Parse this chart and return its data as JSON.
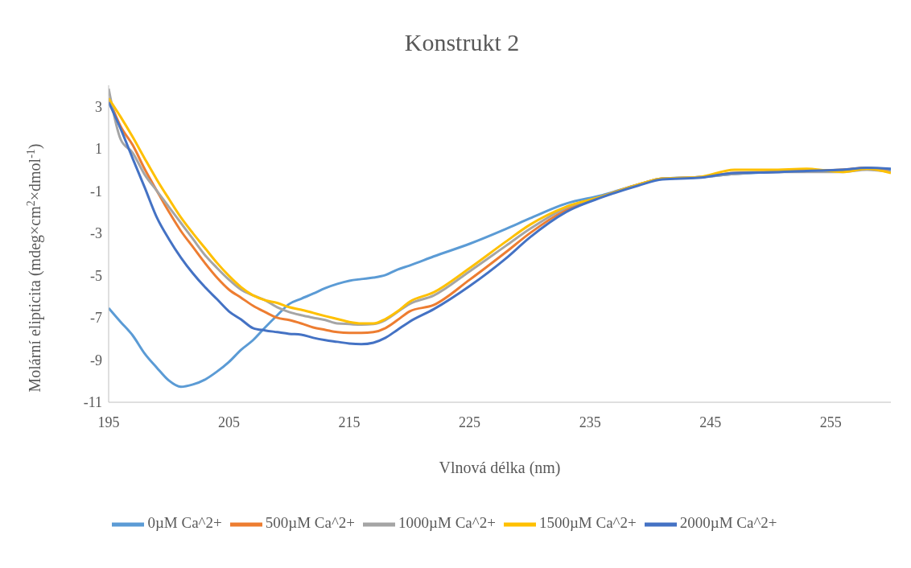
{
  "chart_data": {
    "type": "line",
    "title": "Konstrukt 2",
    "xlabel": "Vlnová délka (nm)",
    "ylabel": "Molární elipticita (mdeg×cm$^{2}$×dmol$^{-1}$)",
    "x": [
      195,
      196,
      197,
      198,
      199,
      200,
      201,
      202,
      203,
      204,
      205,
      206,
      207,
      208,
      209,
      210,
      211,
      212,
      213,
      214,
      215,
      216,
      217,
      218,
      219,
      220,
      222,
      225,
      228,
      230,
      233,
      236,
      239,
      241,
      244,
      247,
      250,
      253,
      256,
      258,
      260
    ],
    "series": [
      {
        "name": "0µM Ca^2+",
        "color": "#5b9bd5",
        "values": [
          -6.54,
          -7.2,
          -7.84,
          -8.7,
          -9.36,
          -9.97,
          -10.27,
          -10.16,
          -9.93,
          -9.55,
          -9.09,
          -8.52,
          -8.06,
          -7.46,
          -6.89,
          -6.35,
          -6.1,
          -5.86,
          -5.6,
          -5.4,
          -5.25,
          -5.17,
          -5.1,
          -4.98,
          -4.72,
          -4.53,
          -4.1,
          -3.5,
          -2.8,
          -2.3,
          -1.6,
          -1.2,
          -0.7,
          -0.42,
          -0.35,
          -0.2,
          -0.1,
          -0.05,
          0.0,
          0.05,
          0.0
        ]
      },
      {
        "name": "500µM Ca^2+",
        "color": "#ed7d31",
        "values": [
          3.4,
          2.05,
          1.17,
          0.03,
          -0.99,
          -1.98,
          -2.89,
          -3.65,
          -4.41,
          -5.1,
          -5.67,
          -6.05,
          -6.43,
          -6.73,
          -7.0,
          -7.11,
          -7.27,
          -7.46,
          -7.57,
          -7.68,
          -7.72,
          -7.72,
          -7.68,
          -7.49,
          -7.11,
          -6.7,
          -6.4,
          -5.2,
          -3.9,
          -3.0,
          -1.9,
          -1.26,
          -0.7,
          -0.42,
          -0.35,
          -0.15,
          -0.1,
          -0.05,
          0.0,
          0.1,
          -0.1
        ]
      },
      {
        "name": "1000µM Ca^2+",
        "color": "#a5a5a5",
        "values": [
          3.84,
          1.44,
          0.8,
          -0.23,
          -0.99,
          -1.75,
          -2.51,
          -3.27,
          -4.03,
          -4.64,
          -5.2,
          -5.67,
          -5.94,
          -6.17,
          -6.5,
          -6.73,
          -6.88,
          -7.0,
          -7.11,
          -7.27,
          -7.3,
          -7.33,
          -7.3,
          -7.11,
          -6.73,
          -6.35,
          -5.95,
          -4.8,
          -3.6,
          -2.8,
          -1.8,
          -1.26,
          -0.7,
          -0.42,
          -0.35,
          -0.2,
          -0.1,
          -0.1,
          -0.1,
          0.0,
          -0.1
        ]
      },
      {
        "name": "1500µM Ca^2+",
        "color": "#ffc000",
        "values": [
          3.38,
          2.5,
          1.55,
          0.53,
          -0.46,
          -1.37,
          -2.25,
          -3.0,
          -3.7,
          -4.4,
          -5.02,
          -5.55,
          -5.94,
          -6.17,
          -6.3,
          -6.5,
          -6.62,
          -6.77,
          -6.92,
          -7.06,
          -7.2,
          -7.27,
          -7.27,
          -7.06,
          -6.7,
          -6.25,
          -5.8,
          -4.65,
          -3.4,
          -2.6,
          -1.75,
          -1.26,
          -0.7,
          -0.42,
          -0.35,
          0.0,
          0.0,
          0.05,
          -0.1,
          0.05,
          -0.15
        ]
      },
      {
        "name": "2000µM Ca^2+",
        "color": "#4472c4",
        "values": [
          3.2,
          1.94,
          0.53,
          -0.84,
          -2.25,
          -3.27,
          -4.15,
          -4.9,
          -5.55,
          -6.12,
          -6.7,
          -7.08,
          -7.49,
          -7.6,
          -7.68,
          -7.76,
          -7.8,
          -7.95,
          -8.06,
          -8.14,
          -8.22,
          -8.25,
          -8.18,
          -7.95,
          -7.57,
          -7.19,
          -6.6,
          -5.5,
          -4.2,
          -3.2,
          -2.0,
          -1.3,
          -0.75,
          -0.45,
          -0.38,
          -0.15,
          -0.12,
          -0.05,
          0.0,
          0.1,
          0.05
        ]
      }
    ],
    "xlim": [
      195,
      260
    ],
    "xticks": [
      195,
      205,
      215,
      225,
      235,
      245,
      255
    ],
    "ylim": [
      -11,
      4
    ],
    "yticks": [
      -11,
      -9,
      -7,
      -5,
      -3,
      -1,
      1,
      3
    ],
    "grid": false,
    "legend": "bottom",
    "marker": "none",
    "line_style": "solid"
  }
}
